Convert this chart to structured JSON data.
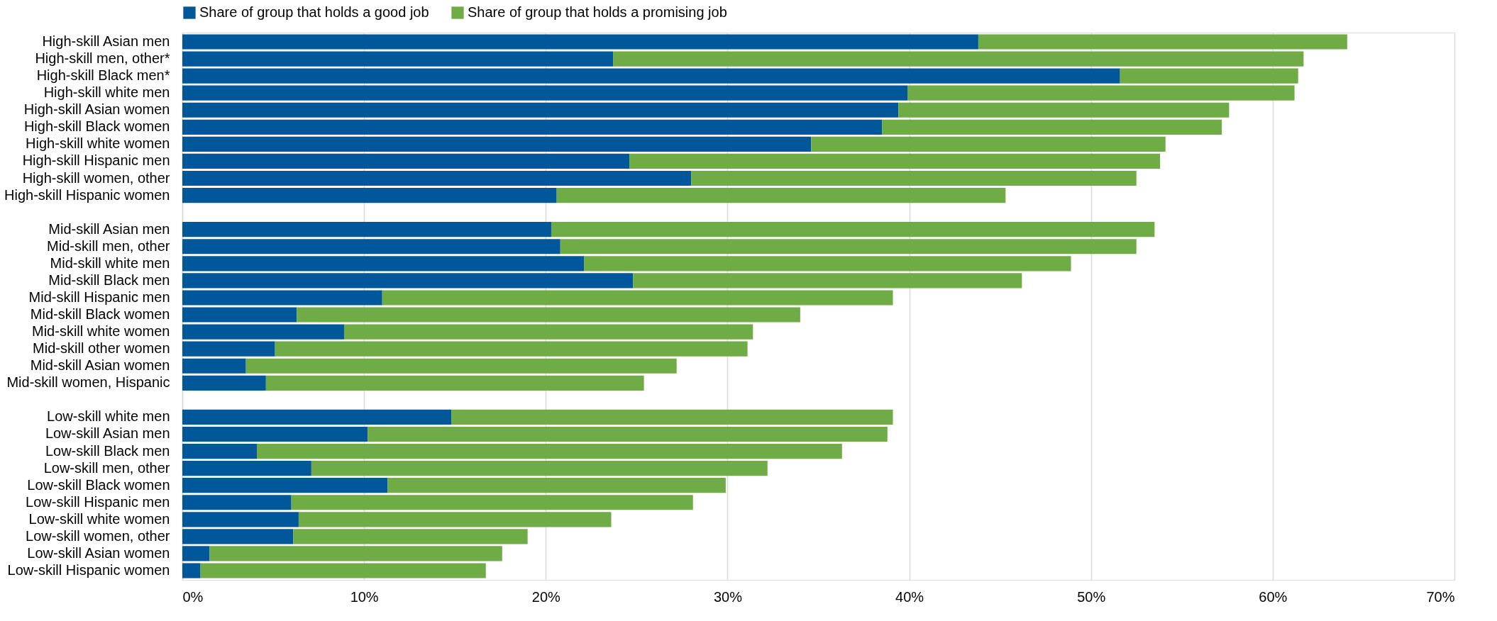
{
  "chart_data": {
    "type": "bar",
    "orientation": "horizontal",
    "stacked": true,
    "grid": "x",
    "legend": "top",
    "categories": [
      "High-skill Asian men",
      "High-skill men, other*",
      "High-skill Black men*",
      "High-skill white men",
      "High-skill Asian women",
      "High-skill Black women",
      "High-skill white women",
      "High-skill Hispanic men",
      "High-skill women, other",
      "High-skill Hispanic women",
      null,
      "Mid-skill Asian men",
      "Mid-skill men, other",
      "Mid-skill white men",
      "Mid-skill Black men",
      "Mid-skill Hispanic men",
      "Mid-skill Black women",
      "Mid-skill white women",
      "Mid-skill other women",
      "Mid-skill Asian women",
      "Mid-skill women, Hispanic",
      null,
      "Low-skill white men",
      "Low-skill Asian men",
      "Low-skill Black men",
      "Low-skill men, other",
      "Low-skill Black women",
      "Low-skill Hispanic men",
      "Low-skill white women",
      "Low-skill women, other",
      "Low-skill Asian women",
      "Low-skill Hispanic women"
    ],
    "series": [
      {
        "name": "Share of group that holds a good job",
        "color": "#00589a",
        "values": [
          43.8,
          23.7,
          51.6,
          39.9,
          39.4,
          38.5,
          34.6,
          24.6,
          28.0,
          20.6,
          null,
          20.3,
          20.8,
          22.1,
          24.8,
          11.0,
          6.3,
          8.9,
          5.1,
          3.5,
          4.6,
          null,
          14.8,
          10.2,
          4.1,
          7.1,
          11.3,
          6.0,
          6.4,
          6.1,
          1.5,
          1.0
        ]
      },
      {
        "name": "Share of group that holds a promising job",
        "color": "#70ac46",
        "values": [
          20.3,
          38.0,
          9.8,
          21.3,
          18.2,
          18.7,
          19.5,
          29.2,
          24.5,
          24.7,
          null,
          33.2,
          31.7,
          26.8,
          21.4,
          28.1,
          27.7,
          22.5,
          26.0,
          23.7,
          20.8,
          null,
          24.3,
          28.6,
          32.2,
          25.1,
          18.6,
          22.1,
          17.2,
          12.9,
          16.1,
          15.7
        ]
      }
    ],
    "xlim": [
      0,
      70
    ],
    "xticks": [
      {
        "value": 0,
        "label": "0%"
      },
      {
        "value": 10,
        "label": "10%"
      },
      {
        "value": 20,
        "label": "20%"
      },
      {
        "value": 30,
        "label": "30%"
      },
      {
        "value": 40,
        "label": "40%"
      },
      {
        "value": 50,
        "label": "50%"
      },
      {
        "value": 60,
        "label": "60%"
      },
      {
        "value": 70,
        "label": "70%"
      }
    ]
  }
}
